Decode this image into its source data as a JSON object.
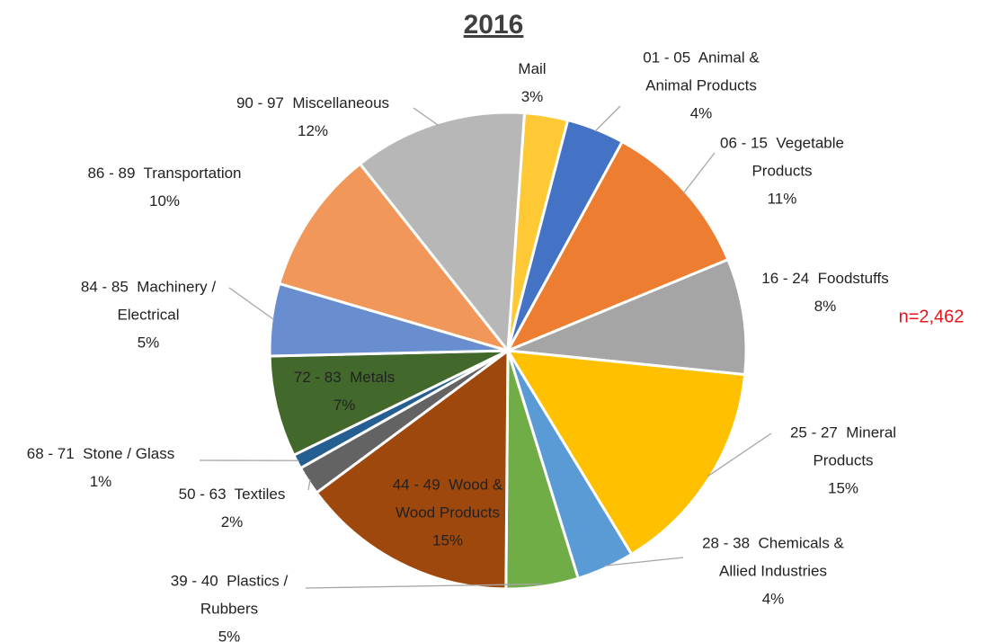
{
  "chart_data": {
    "type": "pie",
    "title": "2016",
    "categories": [
      "Mail",
      "01 - 05  Animal & Animal Products",
      "06 - 15  Vegetable Products",
      "16 - 24  Foodstuffs",
      "25 - 27  Mineral Products",
      "28 - 38  Chemicals & Allied Industries",
      "39 - 40  Plastics / Rubbers",
      "44 - 49  Wood & Wood Products",
      "50 - 63  Textiles",
      "68 - 71  Stone / Glass",
      "72 - 83  Metals",
      "84 - 85  Machinery / Electrical",
      "86 - 89  Transportation",
      "90 - 97  Miscellaneous"
    ],
    "values": [
      3,
      4,
      11,
      8,
      15,
      4,
      5,
      15,
      2,
      1,
      7,
      5,
      10,
      12
    ],
    "value_labels": [
      "3%",
      "4%",
      "11%",
      "8%",
      "15%",
      "4%",
      "5%",
      "15%",
      "2%",
      "1%",
      "7%",
      "5%",
      "10%",
      "12%"
    ],
    "colors": [
      "#ffc936",
      "#4472c4",
      "#ed7d31",
      "#a5a5a5",
      "#ffc000",
      "#5b9bd5",
      "#70ad47",
      "#9e480e",
      "#636363",
      "#255e91",
      "#43682b",
      "#698ed0",
      "#f1975a",
      "#b7b7b7"
    ],
    "annotation": "n=2,462"
  }
}
